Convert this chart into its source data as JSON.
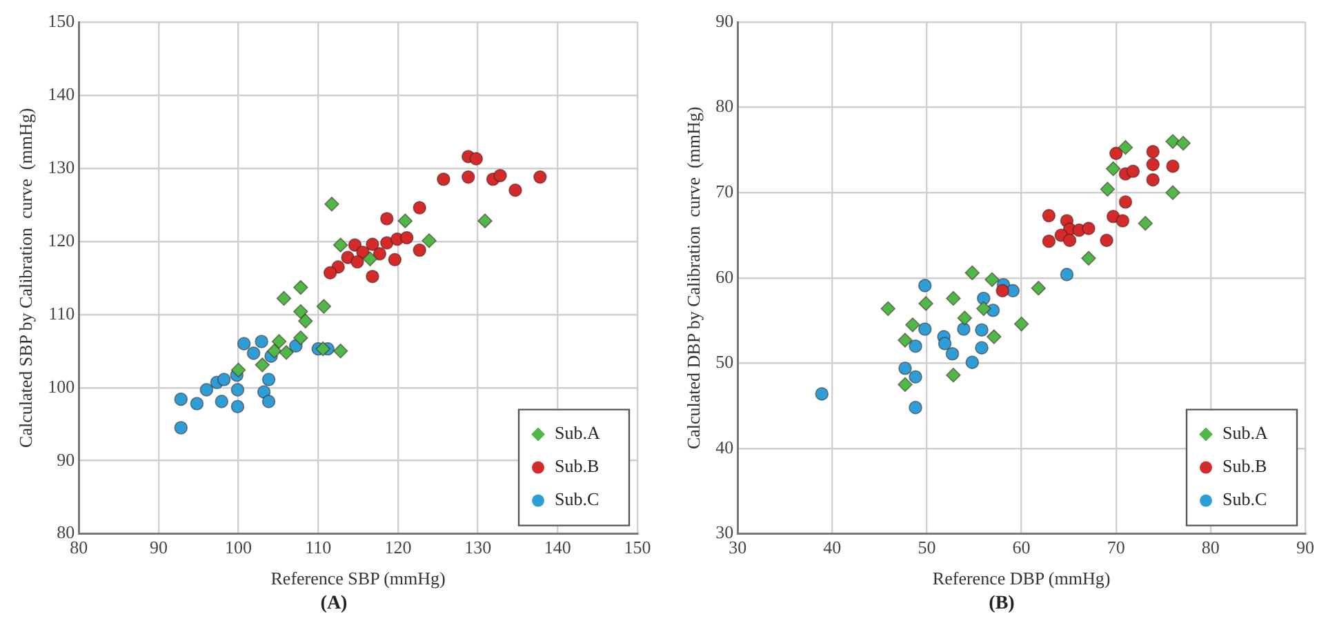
{
  "chart_data": [
    {
      "type": "scatter",
      "xlabel": "Reference SBP (mmHg)",
      "ylabel": "Calculated SBP by Calibration  curve  (mmHg)",
      "annotations": [
        "(A)"
      ],
      "xlim": [
        80,
        150
      ],
      "ylim": [
        80,
        150
      ],
      "xticks": [
        80,
        90,
        100,
        110,
        120,
        130,
        140,
        150
      ],
      "yticks": [
        80,
        90,
        100,
        110,
        120,
        130,
        140,
        150
      ],
      "grid": true,
      "legend": "bottom right",
      "series": [
        {
          "name": "Sub.A",
          "color": "#4fb848",
          "marker": "diamond",
          "x": [
            111.7,
            120.9,
            130.9,
            123.9,
            112.8,
            116.5,
            107.8,
            105.7,
            110.7,
            107.8,
            108.4,
            107.8,
            112.8,
            105.1,
            110.6,
            100,
            103,
            104.5,
            106
          ],
          "values": [
            125.1,
            122.8,
            122.8,
            120.1,
            119.5,
            117.6,
            113.7,
            112.2,
            111.1,
            110.4,
            109.1,
            106.8,
            105.0,
            106.3,
            105.3,
            102.4,
            103.1,
            105.0,
            104.8
          ]
        },
        {
          "name": "Sub.B",
          "color": "#d42a2a",
          "marker": "circle",
          "x": [
            128.8,
            129.8,
            125.7,
            128.8,
            131.9,
            132.8,
            134.7,
            137.8,
            122.7,
            118.6,
            114.6,
            116.8,
            118.6,
            119.9,
            121.1,
            115.6,
            117.7,
            119.6,
            122.7,
            113.7,
            112.5,
            111.5,
            116.8,
            114.9
          ],
          "values": [
            131.6,
            131.3,
            128.5,
            128.8,
            128.5,
            129.0,
            127.0,
            128.8,
            124.6,
            123.1,
            119.5,
            119.6,
            119.8,
            120.3,
            120.5,
            118.5,
            118.3,
            117.5,
            118.8,
            117.8,
            116.5,
            115.7,
            115.2,
            117.2
          ]
        },
        {
          "name": "Sub.C",
          "color": "#2e9fd6",
          "marker": "circle",
          "x": [
            92.8,
            92.8,
            94.8,
            96.0,
            97.3,
            98.2,
            97.9,
            99.9,
            99.9,
            100.7,
            102.9,
            101.9,
            104.1,
            103.8,
            103.2,
            103.8,
            107.2,
            110.0,
            111.2,
            99.8
          ],
          "values": [
            94.5,
            98.4,
            97.8,
            99.7,
            100.7,
            101.1,
            98.1,
            97.4,
            99.7,
            106.0,
            106.3,
            104.7,
            104.3,
            101.1,
            99.4,
            98.1,
            105.7,
            105.3,
            105.3,
            101.7
          ]
        }
      ]
    },
    {
      "type": "scatter",
      "xlabel": "Reference DBP (mmHg)",
      "ylabel": "Calculated DBP by Calibration  curve  (mmHg)",
      "annotations": [
        "(B)"
      ],
      "xlim": [
        30,
        90
      ],
      "ylim": [
        30,
        90
      ],
      "xticks": [
        30,
        40,
        50,
        60,
        70,
        80,
        90
      ],
      "yticks": [
        30,
        40,
        50,
        60,
        70,
        80,
        90
      ],
      "grid": true,
      "legend": "bottom right",
      "series": [
        {
          "name": "Sub.A",
          "color": "#4fb848",
          "marker": "diamond",
          "x": [
            45.9,
            47.7,
            48.5,
            47.7,
            49.9,
            52.8,
            52.8,
            54.0,
            54.8,
            56.9,
            56.0,
            57.1,
            60.0,
            61.8,
            67.1,
            69.1,
            71.0,
            69.7,
            76.0,
            77.1,
            76.0,
            73.1
          ],
          "values": [
            56.4,
            52.7,
            54.5,
            47.5,
            57.0,
            57.6,
            48.6,
            55.3,
            60.6,
            59.8,
            56.4,
            53.1,
            54.6,
            58.8,
            62.3,
            70.4,
            75.3,
            72.8,
            76.0,
            75.8,
            70.0,
            66.4
          ]
        },
        {
          "name": "Sub.B",
          "color": "#d42a2a",
          "marker": "circle",
          "x": [
            58,
            70.0,
            73.9,
            71.0,
            71.8,
            73.9,
            76.0,
            73.9,
            71.0,
            69.7,
            70.7,
            62.9,
            64.8,
            65.1,
            64.2,
            66.1,
            67.1,
            62.9,
            65.1,
            69.0
          ],
          "values": [
            58.5,
            74.6,
            74.8,
            72.2,
            72.5,
            73.3,
            73.1,
            71.5,
            68.9,
            67.2,
            66.7,
            67.3,
            66.7,
            65.7,
            65.0,
            65.6,
            65.8,
            64.3,
            64.4,
            64.4
          ]
        },
        {
          "name": "Sub.C",
          "color": "#2e9fd6",
          "marker": "circle",
          "x": [
            38.9,
            49.8,
            48.8,
            47.7,
            48.8,
            48.8,
            49.8,
            51.8,
            51.9,
            52.7,
            53.9,
            54.8,
            56.0,
            55.8,
            55.8,
            57.0,
            58.1,
            59.1,
            64.8
          ],
          "values": [
            46.4,
            59.1,
            52.0,
            49.4,
            48.4,
            44.8,
            54.0,
            53.1,
            52.3,
            51.1,
            54.0,
            50.1,
            57.6,
            53.9,
            51.8,
            56.2,
            59.2,
            58.5,
            60.4
          ]
        }
      ]
    }
  ]
}
